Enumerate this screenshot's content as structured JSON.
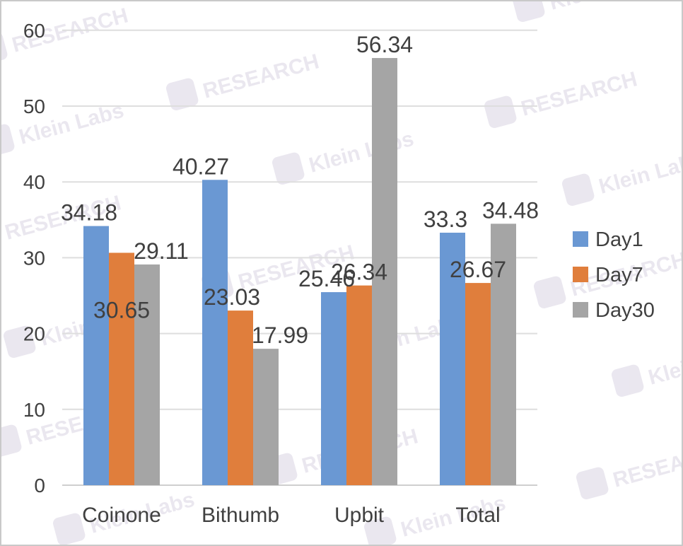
{
  "watermark": {
    "brand_a": "Klein Labs",
    "brand_b": "RESEARCH",
    "logo_text": "K1",
    "color": "#d9d4e3"
  },
  "chart_data": {
    "type": "bar",
    "title": "",
    "xlabel": "",
    "ylabel": "",
    "categories": [
      "Coinone",
      "Bithumb",
      "Upbit",
      "Total"
    ],
    "series": [
      {
        "name": "Day1",
        "color": "#6a98d3",
        "values": [
          34.18,
          40.27,
          25.46,
          33.3
        ]
      },
      {
        "name": "Day7",
        "color": "#e07e3c",
        "values": [
          30.65,
          23.03,
          26.34,
          26.67
        ]
      },
      {
        "name": "Day30",
        "color": "#a5a5a5",
        "values": [
          29.11,
          17.99,
          56.34,
          34.48
        ]
      }
    ],
    "ylim": [
      0,
      60
    ],
    "yticks": [
      0,
      10,
      20,
      30,
      40,
      50,
      60
    ],
    "grid": true,
    "legend_position": "right",
    "value_labels": [
      [
        "34.18",
        "30.65",
        "29.11"
      ],
      [
        "40.27",
        "23.03",
        "17.99"
      ],
      [
        "25.46",
        "26.34",
        "56.34"
      ],
      [
        "33.3",
        "26.67",
        "34.48"
      ]
    ]
  }
}
